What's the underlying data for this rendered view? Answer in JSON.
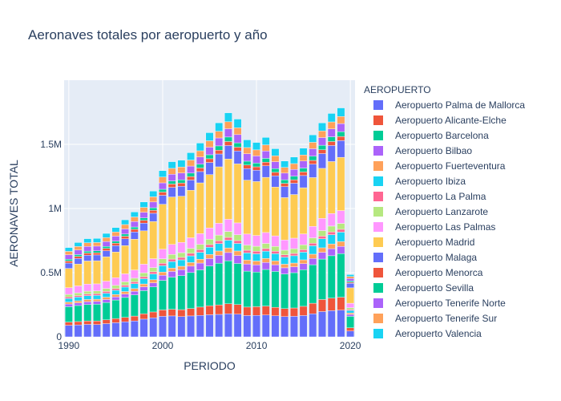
{
  "chart_data": {
    "type": "bar",
    "barmode": "stack",
    "title": "Aeronaves totales por aeropuerto y año",
    "xlabel": "PERIODO",
    "ylabel": "AERONAVES TOTAL",
    "legend_title": "AEROPUERTO",
    "legend_position": "right",
    "xlim": [
      1990,
      2020
    ],
    "ylim": [
      0,
      2000000
    ],
    "x_ticks": [
      1990,
      2000,
      2010,
      2020
    ],
    "x_tick_labels": [
      "1990",
      "2000",
      "2010",
      "2020"
    ],
    "y_ticks": [
      0,
      500000,
      1000000,
      1500000
    ],
    "y_tick_labels": [
      "0",
      "0.5M",
      "1M",
      "1.5M"
    ],
    "grid": true,
    "x": [
      1990,
      1991,
      1992,
      1993,
      1994,
      1995,
      1996,
      1997,
      1998,
      1999,
      2000,
      2001,
      2002,
      2003,
      2004,
      2005,
      2006,
      2007,
      2008,
      2009,
      2010,
      2011,
      2012,
      2013,
      2014,
      2015,
      2016,
      2017,
      2018,
      2019,
      2020
    ],
    "series": [
      {
        "name": "Aeropuerto  Palma de Mallorca",
        "color": "#636efa",
        "values": [
          90000,
          93000,
          97000,
          96000,
          103000,
          110000,
          117000,
          124000,
          138000,
          148000,
          160000,
          163000,
          158000,
          163000,
          167000,
          172000,
          175000,
          180000,
          177000,
          166000,
          167000,
          170000,
          164000,
          158000,
          160000,
          166000,
          180000,
          197000,
          204000,
          208000,
          45000
        ]
      },
      {
        "name": "Aeropuerto Alicante-Elche",
        "color": "#ef553b",
        "values": [
          25000,
          26000,
          27000,
          28000,
          30000,
          32000,
          35000,
          38000,
          42000,
          46000,
          50000,
          52000,
          54000,
          58000,
          65000,
          70000,
          74000,
          78000,
          75000,
          66000,
          68000,
          70000,
          66000,
          62000,
          65000,
          72000,
          82000,
          94000,
          98000,
          101000,
          25000
        ]
      },
      {
        "name": "Aeropuerto Barcelona",
        "color": "#00cc96",
        "values": [
          120000,
          125000,
          128000,
          130000,
          135000,
          145000,
          155000,
          165000,
          180000,
          195000,
          230000,
          250000,
          265000,
          280000,
          290000,
          310000,
          325000,
          335000,
          320000,
          280000,
          270000,
          285000,
          280000,
          270000,
          275000,
          285000,
          300000,
          315000,
          330000,
          340000,
          90000
        ]
      },
      {
        "name": "Aeropuerto Bilbao",
        "color": "#ab63fa",
        "values": [
          21000,
          21000,
          22000,
          22000,
          23000,
          24000,
          26000,
          28000,
          30000,
          32000,
          40000,
          45000,
          46000,
          50000,
          53000,
          58000,
          61000,
          64000,
          62000,
          56000,
          56000,
          55000,
          52000,
          48000,
          46000,
          47000,
          49000,
          53000,
          55000,
          56000,
          15000
        ]
      },
      {
        "name": "Aeropuerto Fuerteventura",
        "color": "#ffa15a",
        "values": [
          15000,
          16000,
          17000,
          17000,
          18000,
          19000,
          20000,
          21000,
          22000,
          24000,
          25000,
          26000,
          27000,
          28000,
          30000,
          32000,
          34000,
          36000,
          35000,
          31000,
          30000,
          31000,
          30000,
          28000,
          29000,
          30000,
          33000,
          35000,
          37000,
          38000,
          11000
        ]
      },
      {
        "name": "Aeropuerto Ibiza",
        "color": "#19d3f3",
        "values": [
          28000,
          29000,
          30000,
          30000,
          31000,
          33000,
          35000,
          38000,
          41000,
          45000,
          50000,
          51000,
          50000,
          52000,
          54000,
          56000,
          58000,
          60000,
          59000,
          55000,
          56000,
          57000,
          56000,
          55000,
          57000,
          60000,
          66000,
          70000,
          72000,
          73000,
          20000
        ]
      },
      {
        "name": "Aeropuerto La Palma",
        "color": "#ff6692",
        "values": [
          12000,
          12000,
          13000,
          13000,
          14000,
          14000,
          15000,
          15000,
          16000,
          17000,
          18000,
          19000,
          19000,
          20000,
          21000,
          21000,
          22000,
          22000,
          22000,
          21000,
          20000,
          20000,
          19000,
          18000,
          18000,
          19000,
          20000,
          21000,
          22000,
          22000,
          7000
        ]
      },
      {
        "name": "Aeropuerto Lanzarote",
        "color": "#b6e880",
        "values": [
          20000,
          21000,
          22000,
          22000,
          23000,
          24000,
          26000,
          28000,
          30000,
          32000,
          35000,
          36000,
          37000,
          38000,
          40000,
          42000,
          44000,
          46000,
          45000,
          40000,
          39000,
          40000,
          38000,
          36000,
          37000,
          38000,
          41000,
          43000,
          45000,
          46000,
          14000
        ]
      },
      {
        "name": "Aeropuerto Las Palmas",
        "color": "#ff97ff",
        "values": [
          52000,
          54000,
          55000,
          55000,
          57000,
          60000,
          62000,
          64000,
          67000,
          70000,
          75000,
          78000,
          80000,
          83000,
          85000,
          88000,
          92000,
          95000,
          93000,
          86000,
          84000,
          85000,
          82000,
          80000,
          82000,
          85000,
          90000,
          95000,
          98000,
          100000,
          35000
        ]
      },
      {
        "name": "Aeropuerto Madrid",
        "color": "#fecb52",
        "values": [
          150000,
          170000,
          180000,
          180000,
          190000,
          200000,
          220000,
          240000,
          260000,
          290000,
          350000,
          370000,
          360000,
          370000,
          395000,
          415000,
          440000,
          470000,
          460000,
          420000,
          420000,
          430000,
          380000,
          330000,
          340000,
          360000,
          380000,
          390000,
          405000,
          415000,
          120000
        ]
      },
      {
        "name": "Aeropuerto Malaga",
        "color": "#636efa",
        "values": [
          42000,
          44000,
          45000,
          45000,
          47000,
          50000,
          53000,
          56000,
          60000,
          64000,
          70000,
          75000,
          77000,
          80000,
          88000,
          95000,
          100000,
          105000,
          100000,
          90000,
          88000,
          90000,
          88000,
          85000,
          88000,
          95000,
          105000,
          115000,
          125000,
          130000,
          35000
        ]
      },
      {
        "name": "Aeropuerto Menorca",
        "color": "#ef553b",
        "values": [
          16000,
          16000,
          17000,
          17000,
          18000,
          19000,
          20000,
          21000,
          22000,
          23000,
          25000,
          26000,
          26000,
          27000,
          28000,
          29000,
          30000,
          31000,
          30000,
          28000,
          27000,
          28000,
          27000,
          26000,
          27000,
          28000,
          29000,
          30000,
          31000,
          32000,
          8000
        ]
      },
      {
        "name": "Aeropuerto Sevilla",
        "color": "#00cc96",
        "values": [
          14000,
          14000,
          15000,
          15000,
          16000,
          16000,
          17000,
          18000,
          19000,
          20000,
          22000,
          24000,
          25000,
          27000,
          29000,
          31000,
          33000,
          35000,
          34000,
          30000,
          29000,
          30000,
          29000,
          28000,
          28000,
          30000,
          33000,
          35000,
          37000,
          38000,
          10000
        ]
      },
      {
        "name": "Aeropuerto Tenerife Norte",
        "color": "#ab63fa",
        "values": [
          35000,
          36000,
          37000,
          37000,
          38000,
          39000,
          40000,
          42000,
          44000,
          45000,
          50000,
          52000,
          53000,
          55000,
          57000,
          59000,
          62000,
          65000,
          64000,
          58000,
          56000,
          57000,
          54000,
          52000,
          53000,
          55000,
          58000,
          60000,
          62000,
          63000,
          20000
        ]
      },
      {
        "name": "Aeropuerto Tenerife Sur",
        "color": "#ffa15a",
        "values": [
          26000,
          27000,
          28000,
          28000,
          30000,
          32000,
          34000,
          36000,
          38000,
          40000,
          45000,
          46000,
          46000,
          47000,
          48000,
          50000,
          52000,
          54000,
          53000,
          48000,
          47000,
          48000,
          46000,
          44000,
          45000,
          47000,
          50000,
          52000,
          54000,
          55000,
          15000
        ]
      },
      {
        "name": "Aeropuerto Valencia",
        "color": "#19d3f3",
        "values": [
          30000,
          31000,
          32000,
          32000,
          33000,
          35000,
          37000,
          39000,
          42000,
          45000,
          50000,
          52000,
          54000,
          57000,
          60000,
          63000,
          66000,
          70000,
          68000,
          60000,
          58000,
          58000,
          55000,
          50000,
          51000,
          53000,
          58000,
          62000,
          66000,
          67000,
          15000
        ]
      }
    ]
  }
}
